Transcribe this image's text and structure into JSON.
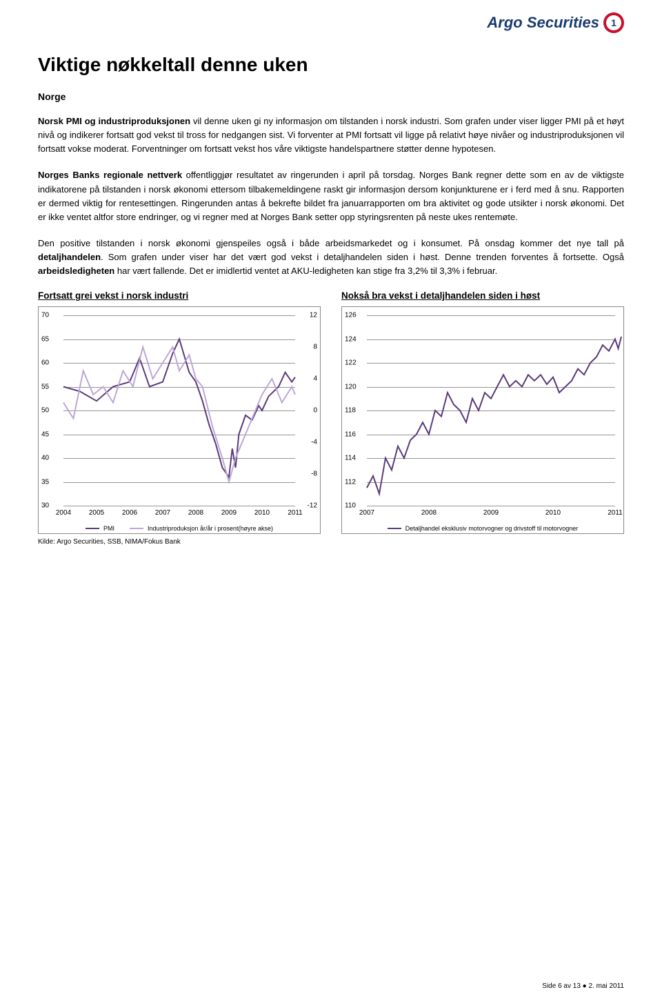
{
  "brand": {
    "name": "Argo Securities",
    "badge_char": "1"
  },
  "title": "Viktige nøkkeltall denne uken",
  "subtitle": "Norge",
  "paragraphs": {
    "p1a": "Norsk PMI og industriproduksjonen",
    "p1b": " vil denne uken gi ny informasjon om tilstanden i norsk industri. Som grafen under viser ligger PMI på et høyt nivå og indikerer fortsatt god vekst til tross for nedgangen sist. Vi forventer at PMI fortsatt vil ligge på relativt høye nivåer og industriproduksjonen vil fortsatt vokse moderat. Forventninger om fortsatt vekst hos våre viktigste handelspartnere støtter denne hypotesen.",
    "p2a": "Norges Banks regionale nettverk",
    "p2b": " offentliggjør resultatet av ringerunden i april på torsdag. Norges Bank regner dette som en av de viktigste indikatorene på tilstanden i norsk økonomi ettersom tilbakemeldingene raskt gir informasjon dersom konjunkturene er i ferd med å snu. Rapporten er dermed viktig for rentesettingen. Ringerunden antas å bekrefte bildet fra januarrapporten om bra aktivitet og gode utsikter i norsk økonomi. Det er ikke ventet altfor store endringer, og vi regner med at Norges Bank setter opp styringsrenten på neste ukes rentemøte.",
    "p3a": "Den positive tilstanden i norsk økonomi gjenspeiles også i både arbeidsmarkedet og i konsumet. På onsdag kommer det nye tall på ",
    "p3b": "detaljhandelen",
    "p3c": ". Som grafen under viser har det vært god vekst i detaljhandelen siden i høst. Denne trenden forventes å fortsette. Også ",
    "p3d": "arbeidsledigheten",
    "p3e": " har vært fallende. Det er imidlertid ventet at AKU-ledigheten kan stige fra 3,2% til 3,3% i februar."
  },
  "chart1": {
    "title": "Fortsatt grei vekst i norsk industri",
    "type": "line-dual-axis",
    "x_years": [
      "2004",
      "2005",
      "2006",
      "2007",
      "2008",
      "2009",
      "2010",
      "2011"
    ],
    "y_left": {
      "min": 30,
      "max": 70,
      "step": 5
    },
    "y_right": {
      "min": -12,
      "max": 12,
      "step": 4
    },
    "grid_color": "#888888",
    "series": [
      {
        "name": "PMI",
        "color": "#5a3a7a",
        "axis": "left",
        "points": [
          [
            0,
            55
          ],
          [
            0.5,
            54
          ],
          [
            1,
            52
          ],
          [
            1.5,
            55
          ],
          [
            2,
            56
          ],
          [
            2.3,
            61
          ],
          [
            2.6,
            55
          ],
          [
            3,
            56
          ],
          [
            3.3,
            62
          ],
          [
            3.5,
            65
          ],
          [
            3.8,
            58
          ],
          [
            4,
            56
          ],
          [
            4.2,
            52
          ],
          [
            4.4,
            47
          ],
          [
            4.6,
            43
          ],
          [
            4.8,
            38
          ],
          [
            5,
            36
          ],
          [
            5.1,
            42
          ],
          [
            5.2,
            38
          ],
          [
            5.3,
            45
          ],
          [
            5.5,
            49
          ],
          [
            5.7,
            48
          ],
          [
            5.9,
            51
          ],
          [
            6,
            50
          ],
          [
            6.2,
            53
          ],
          [
            6.5,
            55
          ],
          [
            6.7,
            58
          ],
          [
            6.9,
            56
          ],
          [
            7,
            57
          ]
        ]
      },
      {
        "name": "Industriproduksjon år/år i prosent(høyre akse)",
        "color": "#bda6d6",
        "axis": "right",
        "points": [
          [
            0,
            1
          ],
          [
            0.3,
            -1
          ],
          [
            0.6,
            5
          ],
          [
            0.9,
            2
          ],
          [
            1.2,
            3
          ],
          [
            1.5,
            1
          ],
          [
            1.8,
            5
          ],
          [
            2.1,
            3
          ],
          [
            2.4,
            8
          ],
          [
            2.7,
            4
          ],
          [
            3,
            6
          ],
          [
            3.3,
            8
          ],
          [
            3.5,
            5
          ],
          [
            3.8,
            7
          ],
          [
            4,
            4
          ],
          [
            4.2,
            3
          ],
          [
            4.5,
            -2
          ],
          [
            4.8,
            -6
          ],
          [
            5,
            -9
          ],
          [
            5.2,
            -6
          ],
          [
            5.5,
            -3
          ],
          [
            5.8,
            0
          ],
          [
            6,
            2
          ],
          [
            6.3,
            4
          ],
          [
            6.6,
            1
          ],
          [
            6.9,
            3
          ],
          [
            7,
            2
          ]
        ]
      }
    ],
    "legend": [
      {
        "label": "PMI",
        "color": "#5a3a7a"
      },
      {
        "label": "Industriproduksjon år/år i prosent(høyre akse)",
        "color": "#bda6d6"
      }
    ]
  },
  "chart2": {
    "title": "Nokså bra vekst i detaljhandelen siden i høst",
    "type": "line",
    "x_years": [
      "2007",
      "2008",
      "2009",
      "2010",
      "2011"
    ],
    "y_left": {
      "min": 110,
      "max": 126,
      "step": 2
    },
    "grid_color": "#888888",
    "series": [
      {
        "name": "Detaljhandel eksklusiv motorvogner og drivstoff til motorvogner",
        "color": "#5a3a7a",
        "axis": "left",
        "points": [
          [
            0,
            111.5
          ],
          [
            0.1,
            112.5
          ],
          [
            0.2,
            111
          ],
          [
            0.3,
            114
          ],
          [
            0.4,
            113
          ],
          [
            0.5,
            115
          ],
          [
            0.6,
            114
          ],
          [
            0.7,
            115.5
          ],
          [
            0.8,
            116
          ],
          [
            0.9,
            117
          ],
          [
            1,
            116
          ],
          [
            1.1,
            118
          ],
          [
            1.2,
            117.5
          ],
          [
            1.3,
            119.5
          ],
          [
            1.4,
            118.5
          ],
          [
            1.5,
            118
          ],
          [
            1.6,
            117
          ],
          [
            1.7,
            119
          ],
          [
            1.8,
            118
          ],
          [
            1.9,
            119.5
          ],
          [
            2,
            119
          ],
          [
            2.1,
            120
          ],
          [
            2.2,
            121
          ],
          [
            2.3,
            120
          ],
          [
            2.4,
            120.5
          ],
          [
            2.5,
            120
          ],
          [
            2.6,
            121
          ],
          [
            2.7,
            120.5
          ],
          [
            2.8,
            121
          ],
          [
            2.9,
            120.2
          ],
          [
            3,
            120.8
          ],
          [
            3.1,
            119.5
          ],
          [
            3.2,
            120
          ],
          [
            3.3,
            120.5
          ],
          [
            3.4,
            121.5
          ],
          [
            3.5,
            121
          ],
          [
            3.6,
            122
          ],
          [
            3.7,
            122.5
          ],
          [
            3.8,
            123.5
          ],
          [
            3.9,
            123
          ],
          [
            4,
            124
          ],
          [
            4.05,
            123.2
          ],
          [
            4.1,
            124.2
          ]
        ]
      }
    ],
    "legend": [
      {
        "label": "Detaljhandel eksklusiv motorvogner og drivstoff til motorvogner",
        "color": "#5a3a7a"
      }
    ]
  },
  "source_note": "Kilde: Argo Securities, SSB, NIMA/Fokus Bank",
  "footer": "Side 6 av 13 ● 2. mai 2011"
}
